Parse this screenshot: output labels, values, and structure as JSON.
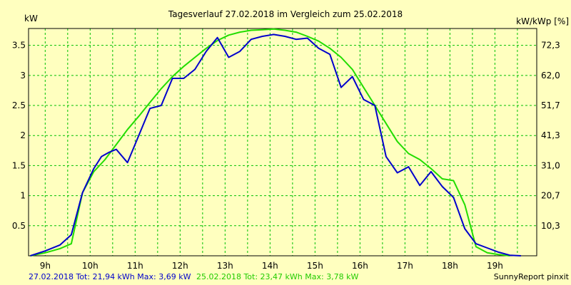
{
  "chart_data": {
    "type": "line",
    "title": "Tagesverlauf 27.02.2018 im Vergleich zum 25.02.2018",
    "ylabel": "kW",
    "ylabel_right": "kW/kWp [%]",
    "xlim": [
      8.63,
      19.93
    ],
    "ylim": [
      0,
      3.78
    ],
    "x_ticks": [
      "9h",
      "10h",
      "11h",
      "12h",
      "13h",
      "14h",
      "15h",
      "16h",
      "17h",
      "18h",
      "19h"
    ],
    "y_ticks": [
      "0.5",
      "1",
      "1.5",
      "2",
      "2.5",
      "3",
      "3.5"
    ],
    "y2_ticks": [
      "10,3",
      "20,7",
      "31,0",
      "41,3",
      "51,7",
      "62,0",
      "72,3"
    ],
    "grid": true,
    "colors": {
      "background": "#FFFFBF",
      "grid": "#00C000",
      "series1": "#0000CC",
      "series2": "#22DD00"
    },
    "series": [
      {
        "name": "27.02.2018",
        "x": [
          8.67,
          9.0,
          9.33,
          9.58,
          9.83,
          10.08,
          10.25,
          10.42,
          10.58,
          10.83,
          11.08,
          11.33,
          11.58,
          11.83,
          12.08,
          12.33,
          12.58,
          12.83,
          13.08,
          13.33,
          13.58,
          13.83,
          14.08,
          14.33,
          14.58,
          14.83,
          15.08,
          15.33,
          15.58,
          15.83,
          16.08,
          16.33,
          16.58,
          16.83,
          17.08,
          17.33,
          17.58,
          17.83,
          18.08,
          18.33,
          18.58,
          18.83,
          19.08,
          19.33,
          19.58
        ],
        "values": [
          0.0,
          0.08,
          0.18,
          0.35,
          1.05,
          1.45,
          1.65,
          1.72,
          1.77,
          1.55,
          2.0,
          2.45,
          2.5,
          2.95,
          2.95,
          3.1,
          3.4,
          3.63,
          3.3,
          3.4,
          3.6,
          3.65,
          3.68,
          3.65,
          3.6,
          3.62,
          3.45,
          3.35,
          2.8,
          2.98,
          2.6,
          2.5,
          1.65,
          1.38,
          1.48,
          1.17,
          1.4,
          1.15,
          0.97,
          0.45,
          0.2,
          0.13,
          0.06,
          0.01,
          0.0
        ]
      },
      {
        "name": "25.02.2018",
        "x": [
          8.67,
          9.0,
          9.33,
          9.58,
          9.83,
          10.08,
          10.33,
          10.58,
          10.83,
          11.08,
          11.33,
          11.58,
          11.83,
          12.08,
          12.33,
          12.58,
          12.83,
          13.08,
          13.33,
          13.58,
          13.83,
          14.08,
          14.33,
          14.58,
          14.83,
          15.08,
          15.33,
          15.58,
          15.83,
          16.08,
          16.33,
          16.58,
          16.83,
          17.08,
          17.33,
          17.58,
          17.83,
          18.08,
          18.33,
          18.58,
          18.83,
          19.08,
          19.33
        ],
        "values": [
          0.0,
          0.05,
          0.12,
          0.2,
          1.05,
          1.4,
          1.6,
          1.85,
          2.1,
          2.32,
          2.55,
          2.78,
          2.98,
          3.15,
          3.3,
          3.45,
          3.58,
          3.67,
          3.72,
          3.75,
          3.76,
          3.77,
          3.75,
          3.72,
          3.65,
          3.57,
          3.45,
          3.3,
          3.1,
          2.8,
          2.5,
          2.2,
          1.9,
          1.7,
          1.6,
          1.45,
          1.28,
          1.25,
          0.85,
          0.15,
          0.05,
          0.02,
          0.0
        ]
      }
    ]
  },
  "footer": {
    "line1_a": "27.02.2018 Tot: 21,94 kWh Max: 3,69 kW",
    "line1_b": "25.02.2018 Tot: 23,47 kWh Max: 3,78 kW",
    "credit": "SunnyReport pinxit"
  }
}
